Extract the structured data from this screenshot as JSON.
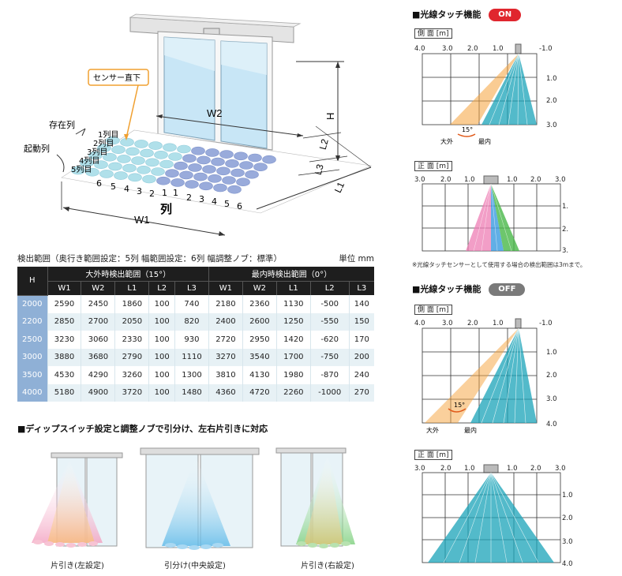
{
  "diagram": {
    "sensor_label": "センサー直下",
    "w2": "W2",
    "w1": "W1",
    "h": "H",
    "l1": "L1",
    "l2": "L2",
    "l3": "L3",
    "presence_label": "存在列",
    "activation_label": "起動列",
    "rows": [
      "1列目",
      "2列目",
      "3列目",
      "4列目",
      "5列目"
    ],
    "left_cols": [
      "6",
      "5",
      "4",
      "3",
      "2",
      "1"
    ],
    "right_cols": [
      "1",
      "2",
      "3",
      "4",
      "5",
      "6"
    ],
    "col_label": "列"
  },
  "table": {
    "caption": "検出範囲（奥行き範囲設定：5列 幅範囲設定：6列 幅調整ノブ：標準）",
    "unit": "単位 mm",
    "group_large": "大外時検出範囲（15°）",
    "group_inner": "最内時検出範囲（0°）",
    "headers": [
      "H",
      "W1",
      "W2",
      "L1",
      "L2",
      "L3",
      "W1",
      "W2",
      "L1",
      "L2",
      "L3"
    ],
    "rows": [
      [
        "2000",
        "2590",
        "2450",
        "1860",
        "100",
        "740",
        "2180",
        "2360",
        "1130",
        "-500",
        "140"
      ],
      [
        "2200",
        "2850",
        "2700",
        "2050",
        "100",
        "820",
        "2400",
        "2600",
        "1250",
        "-550",
        "150"
      ],
      [
        "2500",
        "3230",
        "3060",
        "2330",
        "100",
        "930",
        "2720",
        "2950",
        "1420",
        "-620",
        "170"
      ],
      [
        "3000",
        "3880",
        "3680",
        "2790",
        "100",
        "1110",
        "3270",
        "3540",
        "1700",
        "-750",
        "200"
      ],
      [
        "3500",
        "4530",
        "4290",
        "3260",
        "100",
        "1300",
        "3810",
        "4130",
        "1980",
        "-870",
        "240"
      ],
      [
        "4000",
        "5180",
        "4900",
        "3720",
        "100",
        "1480",
        "4360",
        "4720",
        "2260",
        "-1000",
        "270"
      ]
    ]
  },
  "bottom": {
    "title": "■ディップスイッチ設定と調整ノブで引分け、左右片引きに対応",
    "captions": [
      "片引き(左設定)",
      "引分け(中央設定)",
      "片引き(右設定)"
    ]
  },
  "right": {
    "on_title": "■光線タッチ機能",
    "on_badge": "ON",
    "off_title": "■光線タッチ機能",
    "off_badge": "OFF",
    "side_label": "側 面 [m]",
    "front_label": "正 面 [m]",
    "side_ticks_top": [
      "4.0",
      "3.0",
      "2.0",
      "1.0",
      "0",
      "-1.0"
    ],
    "front_ticks_top": [
      "3.0",
      "2.0",
      "1.0",
      "1.0",
      "2.0",
      "3.0"
    ],
    "on_depth_ticks": [
      "1.0",
      "2.0",
      "3.0"
    ],
    "off_depth_ticks": [
      "1.0",
      "2.0",
      "3.0",
      "4.0"
    ],
    "angle": "15°",
    "outer": "大外",
    "inner": "最内",
    "note": "※光線タッチセンサーとして使用する場合の検出範囲は3mまで。"
  },
  "colors": {
    "on_badge": "#e0262e",
    "off_badge": "#7a7a7a",
    "teal": "#1aa3b8",
    "orange": "#f5a23a",
    "blue_dot": "#8fa3d8",
    "cyan_dot": "#a8dde8",
    "table_header": "#1e1e1e",
    "h_col": "#8fb0d6"
  }
}
